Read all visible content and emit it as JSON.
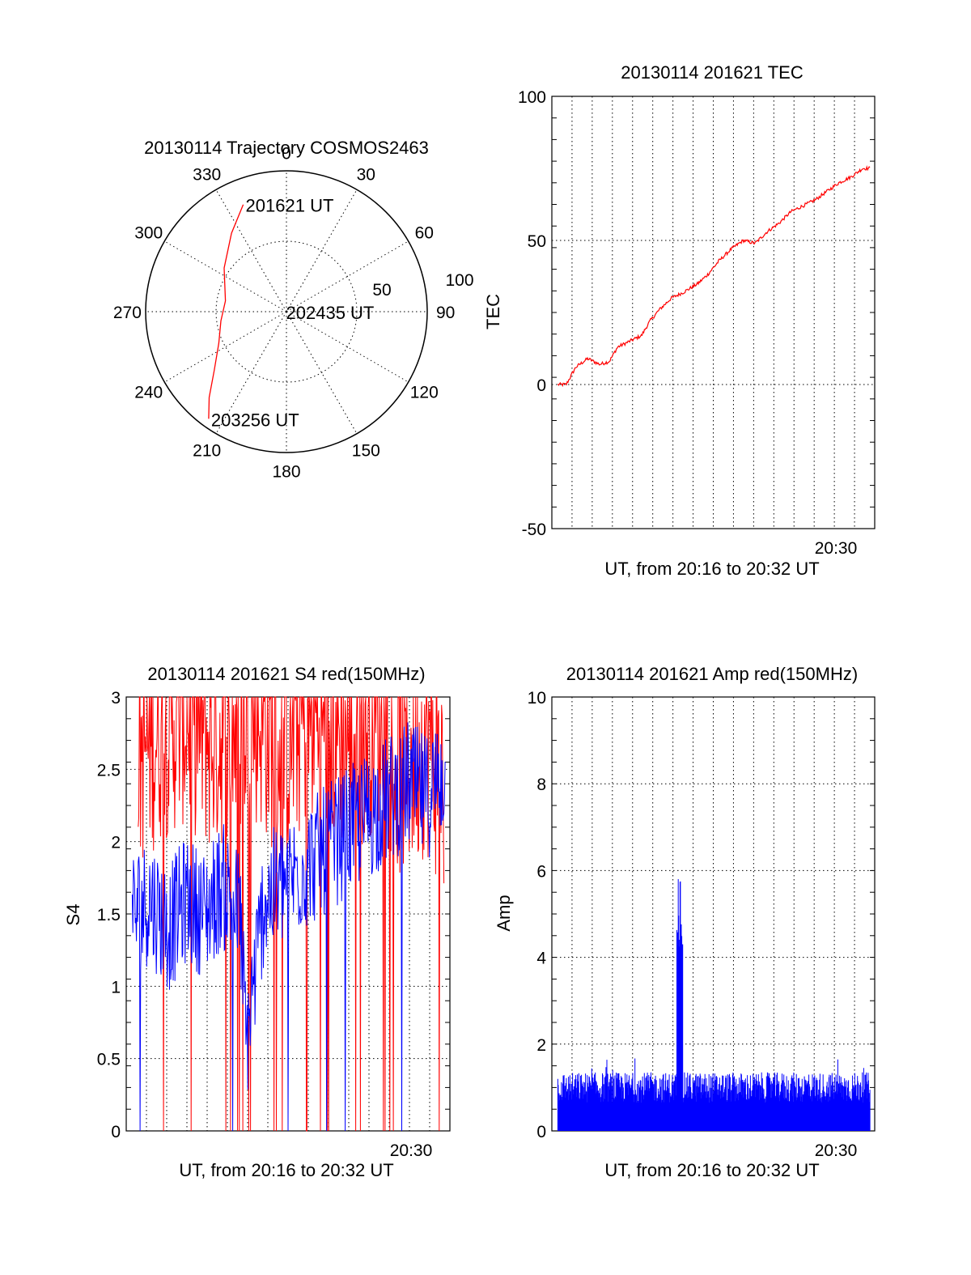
{
  "chart_data": [
    {
      "id": "trajectory",
      "type": "polar",
      "title": "20130114 Trajectory COSMOS2463",
      "azimuth_labels": [
        "0",
        "30",
        "60",
        "90",
        "120",
        "150",
        "180",
        "210",
        "240",
        "270",
        "300",
        "330"
      ],
      "radial_labels": [
        "50",
        "100"
      ],
      "rlim": [
        0,
        100
      ],
      "grid": true,
      "series": [
        {
          "color": "#ff0000",
          "points": [
            [
              338,
              82
            ],
            [
              325,
              68
            ],
            [
              305,
              54
            ],
            [
              280,
              44
            ],
            [
              262,
              47
            ],
            [
              245,
              53
            ],
            [
              231,
              66
            ],
            [
              222,
              82
            ],
            [
              216,
              94
            ]
          ]
        }
      ],
      "annotations": [
        {
          "text": "201621 UT",
          "az": 338,
          "r": 82
        },
        {
          "text": "202435 UT",
          "az": 270,
          "r": 2
        },
        {
          "text": "203256 UT",
          "az": 216,
          "r": 94
        }
      ]
    },
    {
      "id": "tec",
      "type": "line",
      "title": "20130114 201621 TEC",
      "xlabel": "UT, from 20:16 to 20:32 UT",
      "ylabel": "TEC",
      "xlim": [
        20.27,
        20.54
      ],
      "ylim": [
        -50,
        100
      ],
      "yticks": [
        "100",
        "50",
        "0",
        "-50"
      ],
      "xtick_label": "20:30",
      "grid": true,
      "series": [
        {
          "color": "#ff0000",
          "x": [
            20.275,
            20.282,
            20.29,
            20.3,
            20.31,
            20.318,
            20.325,
            20.335,
            20.345,
            20.352,
            20.36,
            20.37,
            20.38,
            20.392,
            20.4,
            20.41,
            20.42,
            20.43,
            20.44,
            20.45,
            20.46,
            20.47,
            20.48,
            20.49,
            20.5,
            20.51,
            20.52,
            20.53,
            20.536
          ],
          "y": [
            0,
            0,
            6,
            9,
            7,
            8,
            13,
            15,
            17,
            22,
            26,
            30,
            32,
            35,
            38,
            43,
            47,
            50,
            49,
            53,
            56,
            60,
            62,
            64,
            67,
            70,
            72,
            75,
            75
          ]
        }
      ]
    },
    {
      "id": "s4",
      "type": "line",
      "title": "20130114 201621 S4 red(150MHz)",
      "xlabel": "UT, from 20:16 to 20:32 UT",
      "ylabel": "S4",
      "xlim": [
        20.27,
        20.54
      ],
      "ylim": [
        0,
        3
      ],
      "yticks": [
        "0",
        "0.5",
        "1",
        "1.5",
        "2",
        "2.5",
        "3"
      ],
      "xtick_label": "20:30",
      "grid": true,
      "series": [
        {
          "name": "red",
          "color": "#ff0000",
          "x": [
            20.28,
            20.3,
            20.32,
            20.34,
            20.36,
            20.38,
            20.4,
            20.42,
            20.44,
            20.46,
            20.48,
            20.5,
            20.52,
            20.535
          ],
          "y": [
            2.6,
            2.8,
            2.9,
            2.7,
            2.8,
            2.9,
            2.6,
            2.9,
            2.8,
            2.7,
            2.9,
            2.5,
            2.7,
            2.4
          ]
        },
        {
          "name": "blue",
          "color": "#0000ff",
          "x": [
            20.275,
            20.29,
            20.305,
            20.32,
            20.335,
            20.35,
            20.365,
            20.37,
            20.385,
            20.4,
            20.415,
            20.43,
            20.445,
            20.46,
            20.475,
            20.49,
            20.505,
            20.52,
            20.536
          ],
          "y": [
            1.5,
            1.6,
            1.4,
            1.6,
            1.5,
            1.7,
            1.5,
            0.6,
            1.6,
            1.7,
            1.8,
            1.9,
            2.0,
            2.1,
            2.2,
            2.3,
            2.4,
            2.3,
            2.5
          ]
        }
      ]
    },
    {
      "id": "amp",
      "type": "bar",
      "title": "20130114 201621 Amp red(150MHz)",
      "xlabel": "UT, from 20:16 to 20:32 UT",
      "ylabel": "Amp",
      "xlim": [
        20.27,
        20.54
      ],
      "ylim": [
        0,
        10
      ],
      "yticks": [
        "10",
        "8",
        "6",
        "4",
        "2",
        "0"
      ],
      "xtick_label": "20:30",
      "grid": true,
      "series": [
        {
          "color": "#0000ff",
          "baseline": 1.0,
          "peak": {
            "x": 20.377,
            "y": 5.9
          }
        }
      ]
    }
  ]
}
